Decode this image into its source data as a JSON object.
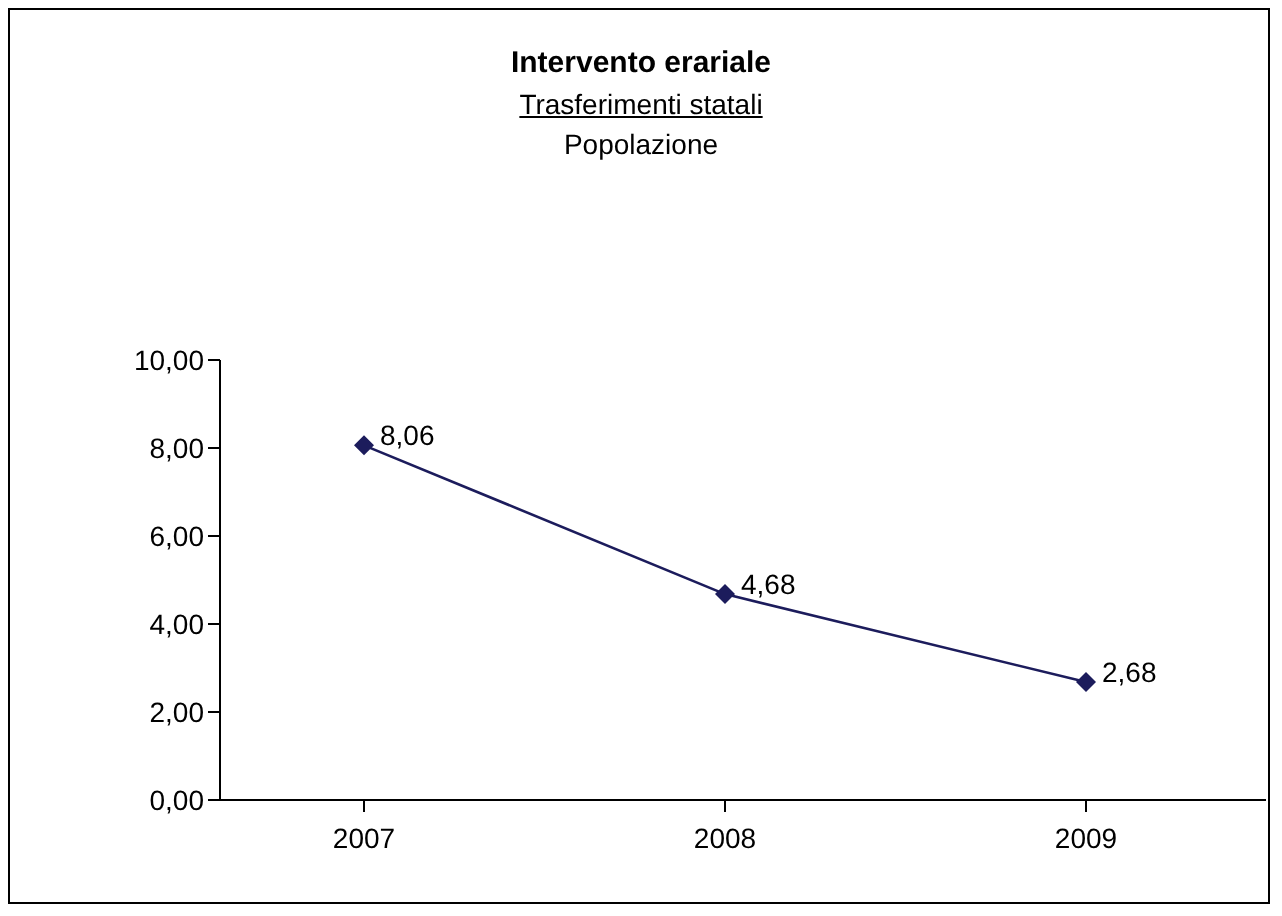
{
  "chart_data": {
    "type": "line",
    "title": "Intervento erariale",
    "subtitle": "Trasferimenti statali",
    "annotations": [
      "Popolazione"
    ],
    "categories": [
      "2007",
      "2008",
      "2009"
    ],
    "series": [
      {
        "color": "#1c1c5c",
        "values": [
          8.06,
          4.68,
          2.68
        ],
        "value_labels": [
          "8,06",
          "4,68",
          "2,68"
        ]
      }
    ],
    "ylim": [
      0,
      10
    ],
    "yticks": [
      {
        "value": 0,
        "label": "0,00"
      },
      {
        "value": 2,
        "label": "2,00"
      },
      {
        "value": 4,
        "label": "4,00"
      },
      {
        "value": 6,
        "label": "6,00"
      },
      {
        "value": 8,
        "label": "8,00"
      },
      {
        "value": 10,
        "label": "10,00"
      }
    ],
    "marker": "diamond",
    "line_style": "solid"
  }
}
